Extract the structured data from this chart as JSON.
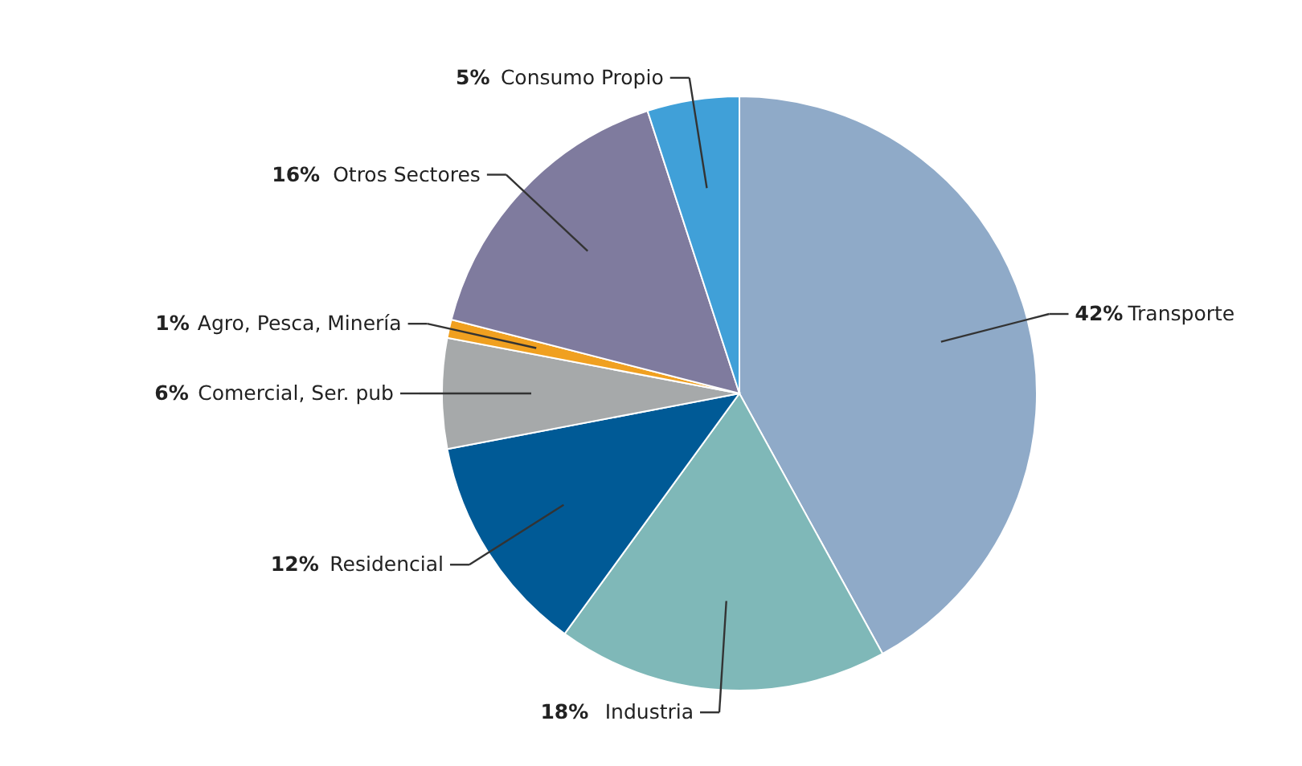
{
  "chart_data": {
    "type": "pie",
    "categories": [
      "Transporte",
      "Industria",
      "Residencial",
      "Comercial, Ser. pub",
      "Agro, Pesca, Minería",
      "Otros Sectores",
      "Consumo Propio"
    ],
    "values": [
      42,
      18,
      12,
      6,
      1,
      16,
      5
    ],
    "value_labels": [
      "42%",
      "18%",
      "12%",
      "6%",
      "1%",
      "16%",
      "5%"
    ],
    "colors": [
      "#8faac8",
      "#7fb8b8",
      "#005a96",
      "#a6a9aa",
      "#f0a020",
      "#7f7b9e",
      "#40a0d8"
    ]
  }
}
